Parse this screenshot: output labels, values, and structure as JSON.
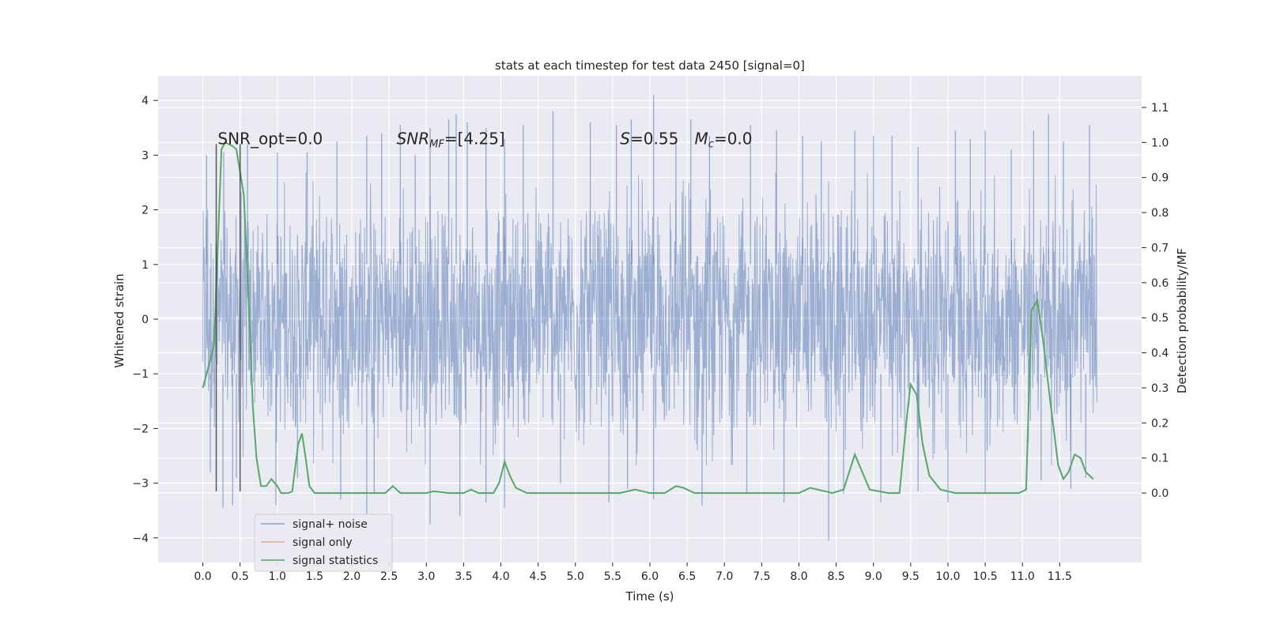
{
  "chart_data": {
    "type": "line",
    "title": "stats at each timestep for test data 2450 [signal=0]",
    "xlabel": "Time (s)",
    "ylabel": "Whitened strain",
    "y2label": "Detection probability/MF",
    "xlim": [
      -0.6,
      12.6
    ],
    "ylim": [
      -4.45,
      4.45
    ],
    "y2lim": [
      -0.198,
      1.19
    ],
    "x_ticks": [
      0.0,
      0.5,
      1.0,
      1.5,
      2.0,
      2.5,
      3.0,
      3.5,
      4.0,
      4.5,
      5.0,
      5.5,
      6.0,
      6.5,
      7.0,
      7.5,
      8.0,
      8.5,
      9.0,
      9.5,
      10.0,
      10.5,
      11.0,
      11.5
    ],
    "x_tick_labels": [
      "0.0",
      "0.5",
      "1.0",
      "1.5",
      "2.0",
      "2.5",
      "3.0",
      "3.5",
      "4.0",
      "4.5",
      "5.0",
      "5.5",
      "6.0",
      "6.5",
      "7.0",
      "7.5",
      "8.0",
      "8.5",
      "9.0",
      "9.5",
      "10.0",
      "10.5",
      "11.0",
      "11.5"
    ],
    "y_ticks": [
      -4,
      -3,
      -2,
      -1,
      0,
      1,
      2,
      3,
      4
    ],
    "y_tick_labels": [
      "−4",
      "−3",
      "−2",
      "−1",
      "0",
      "1",
      "2",
      "3",
      "4"
    ],
    "y2_ticks": [
      0.0,
      0.1,
      0.2,
      0.3,
      0.4,
      0.5,
      0.6,
      0.7,
      0.8,
      0.9,
      1.0,
      1.1
    ],
    "y2_tick_labels": [
      "0.0",
      "0.1",
      "0.2",
      "0.3",
      "0.4",
      "0.5",
      "0.6",
      "0.7",
      "0.8",
      "0.9",
      "1.0",
      "1.1"
    ],
    "grid": true,
    "legend_position": "lower-left",
    "legend_entries": [
      "signal+ noise",
      "signal only",
      "signal statistics"
    ],
    "colors": {
      "noise": "#4c72b0",
      "signal_only": "#dd8452",
      "statistics": "#55a868",
      "background": "#eaeaf2",
      "marker_lines": "#333333"
    },
    "annotations": [
      {
        "text": "SNR_opt=0.0",
        "x": 0.2,
        "y": 3.2
      },
      {
        "text": "SNR",
        "sub": "MF",
        "suffix": "=[4.25]",
        "italic": true,
        "x": 2.6,
        "y": 3.2
      },
      {
        "text": "S",
        "suffix": "=0.55",
        "italic": true,
        "x": 5.6,
        "y": 3.2
      },
      {
        "text": "M",
        "sub": "c",
        "suffix": "=0.0",
        "italic": true,
        "x": 6.6,
        "y": 3.2
      }
    ],
    "marker_lines": [
      {
        "x": 0.18,
        "y_from": -3.15,
        "y_to": 3.2
      },
      {
        "x": 0.5,
        "y_from": -3.15,
        "y_to": 3.2
      }
    ],
    "noise_series": {
      "name": "signal+ noise",
      "t_start": 0.0,
      "t_end": 12.0,
      "typical_range": [
        -1.5,
        1.5
      ],
      "peaks_up": [
        [
          0.05,
          3.0
        ],
        [
          0.28,
          3.05
        ],
        [
          0.6,
          3.2
        ],
        [
          1.0,
          3.05
        ],
        [
          1.4,
          3.05
        ],
        [
          1.8,
          3.25
        ],
        [
          2.2,
          3.35
        ],
        [
          2.4,
          3.4
        ],
        [
          2.65,
          3.55
        ],
        [
          2.85,
          3.0
        ],
        [
          3.05,
          3.5
        ],
        [
          3.3,
          3.65
        ],
        [
          3.4,
          3.75
        ],
        [
          3.55,
          3.6
        ],
        [
          3.8,
          3.5
        ],
        [
          4.05,
          3.3
        ],
        [
          4.3,
          3.55
        ],
        [
          4.7,
          3.8
        ],
        [
          5.2,
          3.6
        ],
        [
          5.55,
          3.55
        ],
        [
          5.75,
          3.65
        ],
        [
          6.05,
          4.1
        ],
        [
          6.35,
          3.25
        ],
        [
          6.55,
          3.65
        ],
        [
          6.8,
          3.35
        ],
        [
          7.35,
          3.55
        ],
        [
          7.7,
          3.45
        ],
        [
          8.05,
          3.35
        ],
        [
          8.3,
          3.25
        ],
        [
          8.75,
          3.45
        ],
        [
          9.0,
          3.35
        ],
        [
          9.25,
          3.35
        ],
        [
          9.6,
          3.15
        ],
        [
          10.1,
          3.45
        ],
        [
          10.3,
          3.3
        ],
        [
          10.5,
          3.45
        ],
        [
          10.85,
          3.1
        ],
        [
          11.15,
          3.45
        ],
        [
          11.35,
          3.75
        ],
        [
          11.55,
          3.25
        ],
        [
          11.9,
          3.55
        ]
      ],
      "peaks_down": [
        [
          0.1,
          -2.8
        ],
        [
          0.27,
          -3.45
        ],
        [
          0.4,
          -3.4
        ],
        [
          0.45,
          -2.9
        ],
        [
          0.98,
          -3.4
        ],
        [
          1.27,
          -2.9
        ],
        [
          1.85,
          -3.3
        ],
        [
          2.2,
          -3.6
        ],
        [
          2.3,
          -3.2
        ],
        [
          3.05,
          -3.75
        ],
        [
          3.45,
          -3.6
        ],
        [
          3.8,
          -3.35
        ],
        [
          4.05,
          -3.45
        ],
        [
          4.8,
          -3.0
        ],
        [
          5.45,
          -3.35
        ],
        [
          5.7,
          -3.1
        ],
        [
          6.05,
          -3.3
        ],
        [
          6.7,
          -3.4
        ],
        [
          7.3,
          -3.2
        ],
        [
          7.8,
          -3.35
        ],
        [
          8.4,
          -4.05
        ],
        [
          8.6,
          -3.2
        ],
        [
          9.1,
          -3.35
        ],
        [
          9.6,
          -3.15
        ],
        [
          10.0,
          -3.35
        ],
        [
          10.5,
          -3.2
        ],
        [
          11.25,
          -2.95
        ],
        [
          11.65,
          -3.1
        ],
        [
          11.85,
          -2.9
        ]
      ]
    },
    "statistics_series": {
      "name": "signal statistics",
      "points": [
        [
          0.0,
          0.3
        ],
        [
          0.15,
          0.42
        ],
        [
          0.25,
          0.98
        ],
        [
          0.3,
          1.0
        ],
        [
          0.4,
          0.99
        ],
        [
          0.45,
          0.98
        ],
        [
          0.55,
          0.85
        ],
        [
          0.62,
          0.52
        ],
        [
          0.67,
          0.25
        ],
        [
          0.72,
          0.1
        ],
        [
          0.78,
          0.02
        ],
        [
          0.85,
          0.02
        ],
        [
          0.92,
          0.04
        ],
        [
          1.0,
          0.02
        ],
        [
          1.05,
          0.0
        ],
        [
          1.15,
          0.0
        ],
        [
          1.2,
          0.005
        ],
        [
          1.28,
          0.14
        ],
        [
          1.33,
          0.17
        ],
        [
          1.38,
          0.1
        ],
        [
          1.43,
          0.02
        ],
        [
          1.5,
          0.0
        ],
        [
          1.8,
          0.0
        ],
        [
          2.2,
          0.0
        ],
        [
          2.45,
          0.0
        ],
        [
          2.55,
          0.02
        ],
        [
          2.65,
          0.0
        ],
        [
          2.8,
          0.0
        ],
        [
          3.0,
          0.0
        ],
        [
          3.1,
          0.005
        ],
        [
          3.3,
          0.0
        ],
        [
          3.5,
          0.0
        ],
        [
          3.6,
          0.01
        ],
        [
          3.7,
          0.0
        ],
        [
          3.9,
          0.0
        ],
        [
          3.98,
          0.03
        ],
        [
          4.05,
          0.09
        ],
        [
          4.12,
          0.05
        ],
        [
          4.2,
          0.015
        ],
        [
          4.35,
          0.0
        ],
        [
          4.8,
          0.0
        ],
        [
          5.2,
          0.0
        ],
        [
          5.5,
          0.0
        ],
        [
          5.6,
          0.0
        ],
        [
          5.8,
          0.01
        ],
        [
          6.0,
          0.0
        ],
        [
          6.2,
          0.0
        ],
        [
          6.35,
          0.02
        ],
        [
          6.45,
          0.015
        ],
        [
          6.6,
          0.0
        ],
        [
          7.0,
          0.0
        ],
        [
          7.5,
          0.0
        ],
        [
          8.0,
          0.0
        ],
        [
          8.15,
          0.015
        ],
        [
          8.25,
          0.01
        ],
        [
          8.45,
          0.0
        ],
        [
          8.6,
          0.01
        ],
        [
          8.75,
          0.11
        ],
        [
          8.85,
          0.06
        ],
        [
          8.95,
          0.01
        ],
        [
          9.2,
          0.0
        ],
        [
          9.35,
          0.0
        ],
        [
          9.45,
          0.22
        ],
        [
          9.5,
          0.31
        ],
        [
          9.58,
          0.28
        ],
        [
          9.66,
          0.14
        ],
        [
          9.75,
          0.05
        ],
        [
          9.9,
          0.01
        ],
        [
          10.1,
          0.0
        ],
        [
          10.5,
          0.0
        ],
        [
          10.95,
          0.0
        ],
        [
          11.05,
          0.01
        ],
        [
          11.12,
          0.52
        ],
        [
          11.2,
          0.55
        ],
        [
          11.28,
          0.43
        ],
        [
          11.38,
          0.25
        ],
        [
          11.48,
          0.08
        ],
        [
          11.55,
          0.04
        ],
        [
          11.62,
          0.06
        ],
        [
          11.7,
          0.11
        ],
        [
          11.78,
          0.1
        ],
        [
          11.85,
          0.06
        ],
        [
          11.95,
          0.04
        ]
      ]
    }
  }
}
